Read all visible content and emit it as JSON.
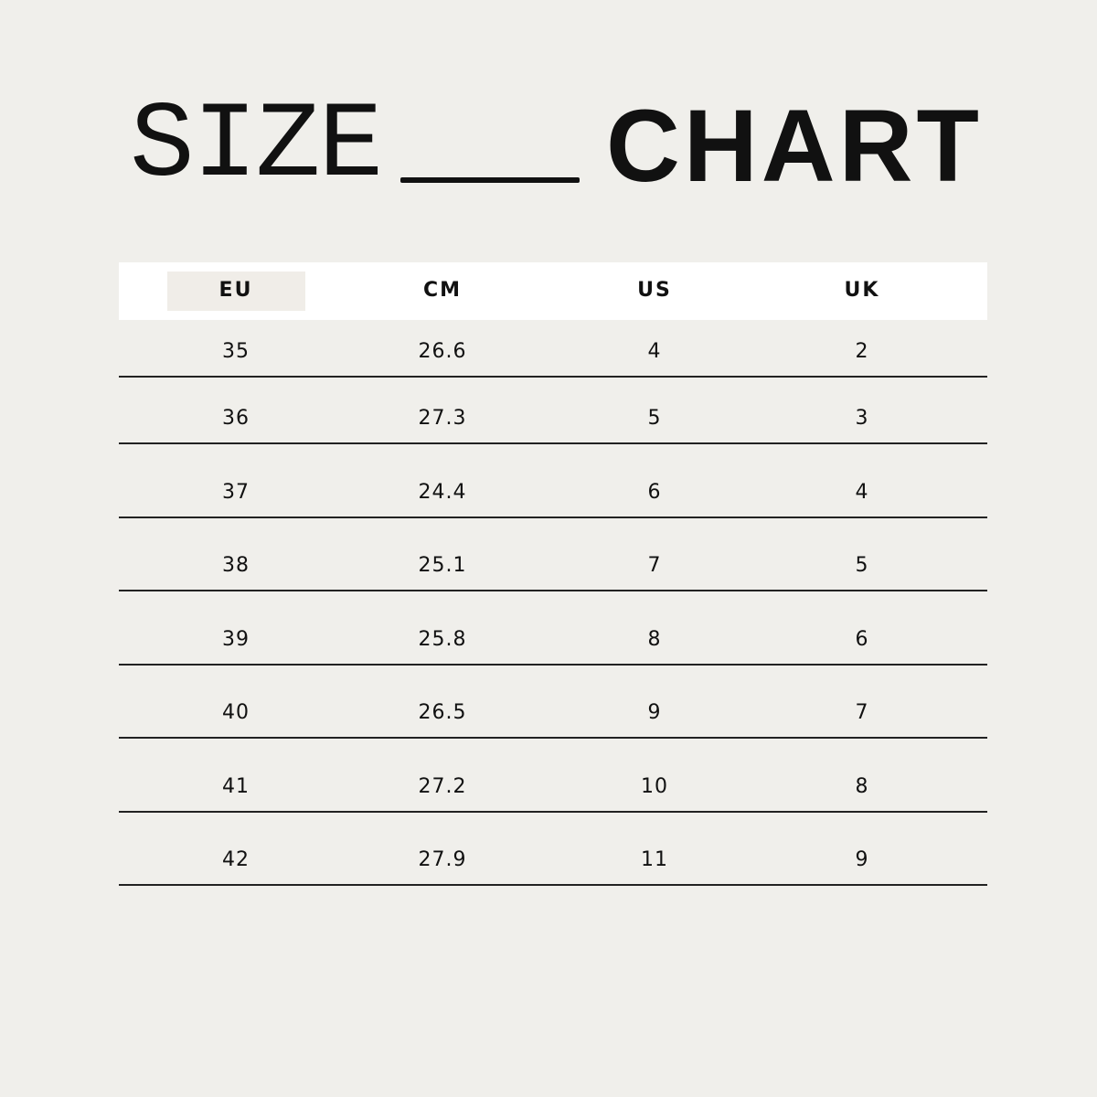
{
  "title": {
    "left": "SIZE",
    "right": "CHART"
  },
  "table": {
    "headers": [
      "EU",
      "CM",
      "US",
      "UK"
    ],
    "highlighted_header": "EU",
    "rows": [
      [
        "35",
        "26.6",
        "4",
        "2"
      ],
      [
        "36",
        "27.3",
        "5",
        "3"
      ],
      [
        "37",
        "24.4",
        "6",
        "4"
      ],
      [
        "38",
        "25.1",
        "7",
        "5"
      ],
      [
        "39",
        "25.8",
        "8",
        "6"
      ],
      [
        "40",
        "26.5",
        "9",
        "7"
      ],
      [
        "41",
        "27.2",
        "10",
        "8"
      ],
      [
        "42",
        "27.9",
        "11",
        "9"
      ]
    ]
  },
  "colors": {
    "background": "#f0efeb",
    "header_bg": "#ffffff",
    "highlight": "#f0ede8",
    "text": "#111111"
  }
}
